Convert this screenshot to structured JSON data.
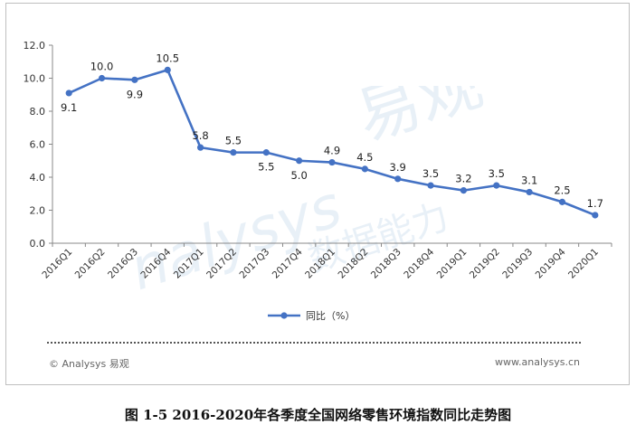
{
  "chart_data": {
    "type": "line",
    "categories": [
      "2016Q1",
      "2016Q2",
      "2016Q3",
      "2016Q4",
      "2017Q1",
      "2017Q2",
      "2017Q3",
      "2017Q4",
      "2018Q1",
      "2018Q2",
      "2018Q3",
      "2018Q4",
      "2019Q1",
      "2019Q2",
      "2019Q3",
      "2019Q4",
      "2020Q1"
    ],
    "series": [
      {
        "name": "同比（%）",
        "values": [
          9.1,
          10.0,
          9.9,
          10.5,
          5.8,
          5.5,
          5.5,
          5.0,
          4.9,
          4.5,
          3.9,
          3.5,
          3.2,
          3.5,
          3.1,
          2.5,
          1.7
        ],
        "labels": [
          "9.1",
          "10.0",
          "9.9",
          "10.5",
          "5.8",
          "5.5",
          "5.5",
          "5.0",
          "4.9",
          "4.5",
          "3.9",
          "3.5",
          "3.2",
          "3.5",
          "3.1",
          "2.5",
          "1.7"
        ],
        "color": "#4472c4"
      }
    ],
    "yticks": [
      "0.0",
      "2.0",
      "4.0",
      "6.0",
      "8.0",
      "10.0",
      "12.0"
    ],
    "ylim": [
      0,
      12
    ],
    "grid": false,
    "legend_position": "bottom"
  },
  "watermark": {
    "brand": "易观",
    "latin": "nalysys",
    "slogan": "数据能力"
  },
  "footer": {
    "left": "© Analysys 易观",
    "right": "www.analysys.cn"
  },
  "caption": "图 1-5 2016-2020年各季度全国网络零售环境指数同比走势图"
}
